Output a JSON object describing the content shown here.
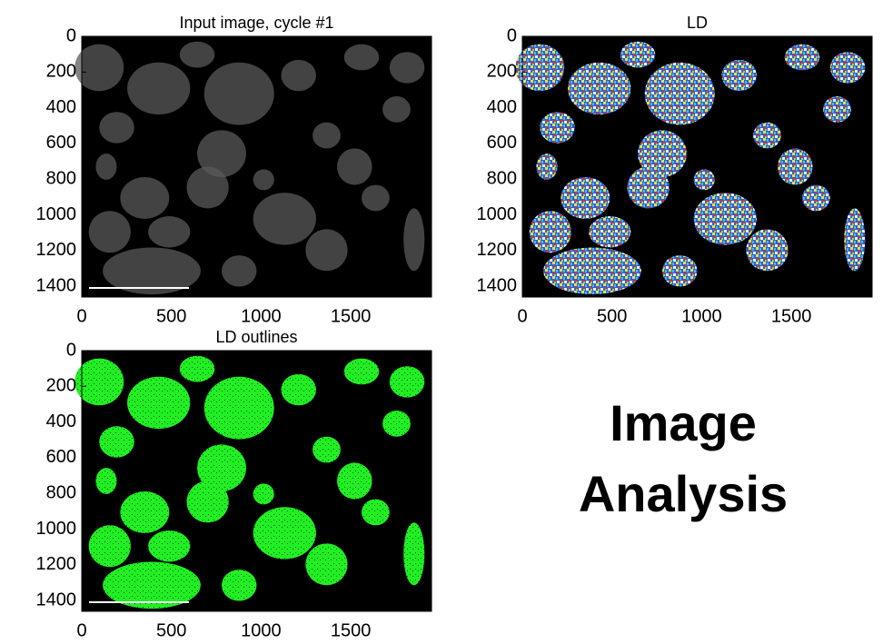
{
  "chart_data": [
    {
      "type": "image",
      "title": "Input image, cycle #1",
      "xlim": [
        0,
        1950
      ],
      "ylim": [
        1460,
        0
      ],
      "xticks": [
        0,
        500,
        1000,
        1500
      ],
      "yticks": [
        0,
        200,
        400,
        600,
        800,
        1000,
        1200,
        1400
      ]
    },
    {
      "type": "image",
      "title": "LD",
      "xlim": [
        0,
        1950
      ],
      "ylim": [
        1460,
        0
      ],
      "xticks": [
        0,
        500,
        1000,
        1500
      ],
      "yticks": [
        0,
        200,
        400,
        600,
        800,
        1000,
        1200,
        1400
      ]
    },
    {
      "type": "image",
      "title": "LD outlines",
      "xlim": [
        0,
        1950
      ],
      "ylim": [
        1460,
        0
      ],
      "xticks": [
        0,
        500,
        1000,
        1500
      ],
      "yticks": [
        0,
        200,
        400,
        600,
        800,
        1000,
        1200,
        1400
      ]
    }
  ],
  "caption": [
    "Image",
    "Analysis"
  ]
}
